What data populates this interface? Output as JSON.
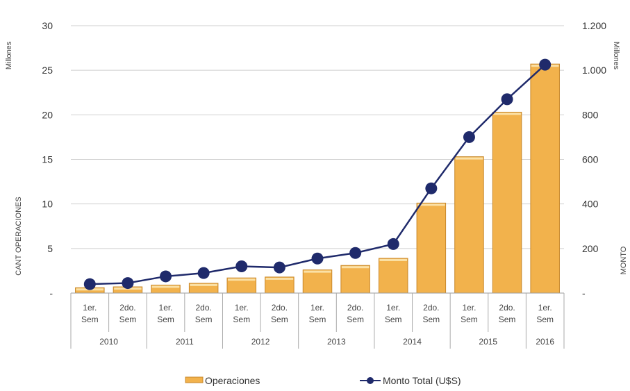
{
  "chart_data": {
    "type": "bar",
    "categories": [
      "1er. Sem",
      "2do. Sem",
      "1er. Sem",
      "2do. Sem",
      "1er. Sem",
      "2do. Sem",
      "1er. Sem",
      "2do. Sem",
      "1er. Sem",
      "2do. Sem",
      "1er. Sem",
      "2do. Sem",
      "1er. Sem"
    ],
    "category_lines": [
      [
        "1er.",
        "Sem"
      ],
      [
        "2do.",
        "Sem"
      ],
      [
        "1er.",
        "Sem"
      ],
      [
        "2do.",
        "Sem"
      ],
      [
        "1er.",
        "Sem"
      ],
      [
        "2do.",
        "Sem"
      ],
      [
        "1er.",
        "Sem"
      ],
      [
        "2do.",
        "Sem"
      ],
      [
        "1er.",
        "Sem"
      ],
      [
        "2do.",
        "Sem"
      ],
      [
        "1er.",
        "Sem"
      ],
      [
        "2do.",
        "Sem"
      ],
      [
        "1er.",
        "Sem"
      ]
    ],
    "year_groups": [
      {
        "label": "2010",
        "count": 2
      },
      {
        "label": "2011",
        "count": 2
      },
      {
        "label": "2012",
        "count": 2
      },
      {
        "label": "2013",
        "count": 2
      },
      {
        "label": "2014",
        "count": 2
      },
      {
        "label": "2015",
        "count": 2
      },
      {
        "label": "2016",
        "count": 1
      }
    ],
    "series": [
      {
        "name": "Operaciones",
        "axis": "left",
        "kind": "bar",
        "color": "#F2B24C",
        "values": [
          0.6,
          0.7,
          0.9,
          1.1,
          1.7,
          1.8,
          2.6,
          3.1,
          3.9,
          10.1,
          15.3,
          20.3,
          25.7
        ]
      },
      {
        "name": "Monto Total (U$S)",
        "axis": "right",
        "kind": "line",
        "color": "#1F2A6B",
        "values": [
          40,
          45,
          75,
          90,
          120,
          115,
          155,
          180,
          220,
          470,
          700,
          870,
          1025
        ]
      }
    ],
    "ylabel": "CANT OPERACIONES",
    "y_unit": "Millones",
    "ylim": [
      0,
      30
    ],
    "y_ticks": [
      "-",
      "5",
      "10",
      "15",
      "20",
      "25",
      "30"
    ],
    "y2label": "MONTO",
    "y2_unit": "Millones",
    "y2lim": [
      0,
      1200
    ],
    "y2_ticks": [
      "-",
      "200",
      "400",
      "600",
      "800",
      "1.000",
      "1.200"
    ],
    "grid": true,
    "legend_position": "bottom"
  }
}
